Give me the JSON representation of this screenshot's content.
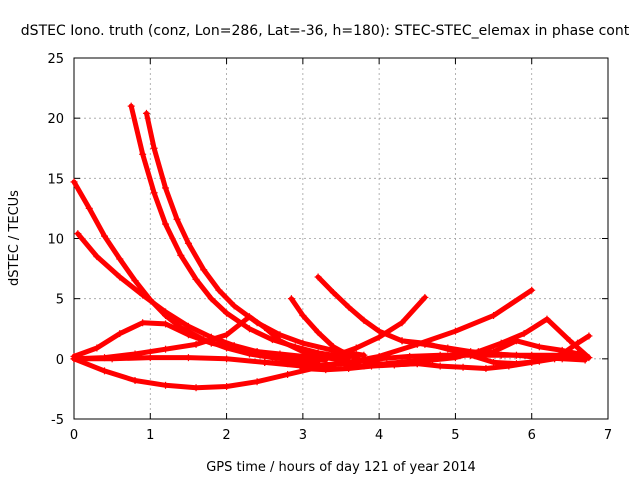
{
  "chart_data": {
    "type": "scatter",
    "title": "dSTEC Iono. truth (conz, Lon=286, Lat=-36, h=180): STEC-STEC_elemax in phase cont",
    "xlabel": "GPS time / hours of day 121 of year 2014",
    "ylabel": "dSTEC  / TECUs",
    "xlim": [
      0,
      7
    ],
    "ylim": [
      -5,
      25
    ],
    "xticks": [
      0,
      1,
      2,
      3,
      4,
      5,
      6,
      7
    ],
    "yticks": [
      -5,
      0,
      5,
      10,
      15,
      20,
      25
    ],
    "grid": true,
    "marker": "+",
    "color": "#ff0000",
    "series": [
      {
        "x": [
          0.0,
          0.2,
          0.4,
          0.6,
          0.8,
          1.0,
          1.2,
          1.4,
          1.7,
          2.0,
          2.3,
          2.6,
          2.9,
          3.2
        ],
        "y": [
          14.7,
          12.5,
          10.2,
          8.3,
          6.5,
          4.9,
          3.6,
          2.6,
          1.6,
          0.9,
          0.4,
          0.1,
          -0.1,
          -0.2
        ]
      },
      {
        "x": [
          0.05,
          0.3,
          0.6,
          0.9,
          1.2,
          1.5,
          1.8,
          2.1,
          2.4,
          2.7,
          3.0,
          3.3
        ],
        "y": [
          10.4,
          8.5,
          6.8,
          5.3,
          3.9,
          2.7,
          1.8,
          1.1,
          0.6,
          0.3,
          0.1,
          -0.1
        ]
      },
      {
        "x": [
          0.75,
          0.9,
          1.05,
          1.2,
          1.4,
          1.6,
          1.8,
          2.0,
          2.3,
          2.6,
          2.9,
          3.2,
          3.6
        ],
        "y": [
          21.0,
          17.0,
          13.8,
          11.2,
          8.6,
          6.6,
          5.0,
          3.8,
          2.5,
          1.6,
          1.0,
          0.5,
          0.1
        ]
      },
      {
        "x": [
          0.95,
          1.05,
          1.2,
          1.35,
          1.5,
          1.7,
          1.9,
          2.1,
          2.4,
          2.7,
          3.0,
          3.4,
          3.8
        ],
        "y": [
          20.4,
          17.5,
          14.2,
          11.6,
          9.6,
          7.4,
          5.7,
          4.4,
          3.0,
          2.0,
          1.3,
          0.7,
          0.3
        ]
      },
      {
        "x": [
          0.0,
          0.3,
          0.6,
          0.9,
          1.2,
          1.5,
          1.8,
          2.1,
          2.4,
          2.7,
          3.0,
          3.3
        ],
        "y": [
          0.2,
          0.9,
          2.1,
          3.0,
          2.9,
          2.0,
          1.3,
          0.9,
          0.6,
          0.4,
          0.2,
          0.1
        ]
      },
      {
        "x": [
          0.0,
          0.4,
          0.8,
          1.2,
          1.6,
          2.0,
          2.3,
          2.5,
          2.7,
          3.0,
          3.3,
          3.6
        ],
        "y": [
          0.0,
          0.1,
          0.4,
          0.8,
          1.2,
          2.0,
          3.5,
          2.6,
          1.5,
          0.6,
          0.1,
          -0.2
        ]
      },
      {
        "x": [
          0.0,
          0.4,
          0.8,
          1.2,
          1.6,
          2.0,
          2.4,
          2.8,
          3.2,
          3.6,
          4.0,
          4.4,
          4.8,
          5.2,
          5.6,
          6.0,
          6.4,
          6.7
        ],
        "y": [
          0.0,
          -1.0,
          -1.8,
          -2.2,
          -2.4,
          -2.3,
          -1.9,
          -1.3,
          -0.7,
          -0.3,
          0.0,
          0.2,
          0.3,
          0.3,
          0.3,
          0.3,
          0.3,
          0.2
        ]
      },
      {
        "x": [
          0.0,
          0.5,
          1.0,
          1.5,
          2.0,
          2.5,
          3.0,
          3.5,
          4.0,
          4.5,
          5.0,
          5.5,
          6.0
        ],
        "y": [
          0.0,
          0.0,
          0.1,
          0.1,
          0.0,
          -0.3,
          -0.6,
          -0.4,
          0.2,
          1.2,
          2.3,
          3.6,
          5.7
        ]
      },
      {
        "x": [
          2.85,
          3.0,
          3.2,
          3.4,
          3.6,
          3.8,
          4.0,
          4.2,
          4.5
        ],
        "y": [
          5.0,
          3.6,
          2.2,
          1.0,
          0.3,
          -0.2,
          -0.4,
          -0.5,
          -0.4
        ]
      },
      {
        "x": [
          3.2,
          3.4,
          3.6,
          3.8,
          4.0,
          4.3,
          4.6,
          4.9,
          5.2,
          5.5,
          5.8,
          6.1,
          6.4,
          6.7
        ],
        "y": [
          6.8,
          5.5,
          4.3,
          3.2,
          2.3,
          1.5,
          1.2,
          0.9,
          0.6,
          0.4,
          0.3,
          0.1,
          0.0,
          -0.1
        ]
      },
      {
        "x": [
          2.5,
          2.8,
          3.1,
          3.4,
          3.7,
          4.0,
          4.3,
          4.6
        ],
        "y": [
          -0.3,
          -0.4,
          -0.2,
          0.2,
          0.9,
          1.8,
          3.0,
          5.1
        ]
      },
      {
        "x": [
          3.5,
          3.8,
          4.1,
          4.4,
          4.7,
          5.0,
          5.3,
          5.6,
          5.9,
          6.2,
          6.5,
          6.75
        ],
        "y": [
          -0.4,
          -0.6,
          -0.4,
          -0.2,
          -0.1,
          0.1,
          0.6,
          1.3,
          2.1,
          3.3,
          1.5,
          0.1
        ]
      },
      {
        "x": [
          4.3,
          4.6,
          4.9,
          5.2,
          5.5,
          5.8,
          6.1,
          6.4,
          6.7
        ],
        "y": [
          1.5,
          1.3,
          0.8,
          0.3,
          0.6,
          1.5,
          1.0,
          0.7,
          0.3
        ]
      },
      {
        "x": [
          5.2,
          5.5,
          5.8,
          6.1,
          6.4,
          6.6,
          6.75
        ],
        "y": [
          0.3,
          -0.3,
          -0.4,
          -0.2,
          0.4,
          1.3,
          1.9
        ]
      },
      {
        "x": [
          3.0,
          3.3,
          3.6,
          3.9,
          4.2,
          4.5,
          4.8,
          5.1,
          5.4,
          5.7,
          6.0,
          6.3,
          6.6
        ],
        "y": [
          -0.8,
          -0.9,
          -0.8,
          -0.6,
          -0.5,
          -0.4,
          -0.6,
          -0.7,
          -0.8,
          -0.6,
          -0.3,
          0.0,
          0.4
        ]
      }
    ]
  }
}
